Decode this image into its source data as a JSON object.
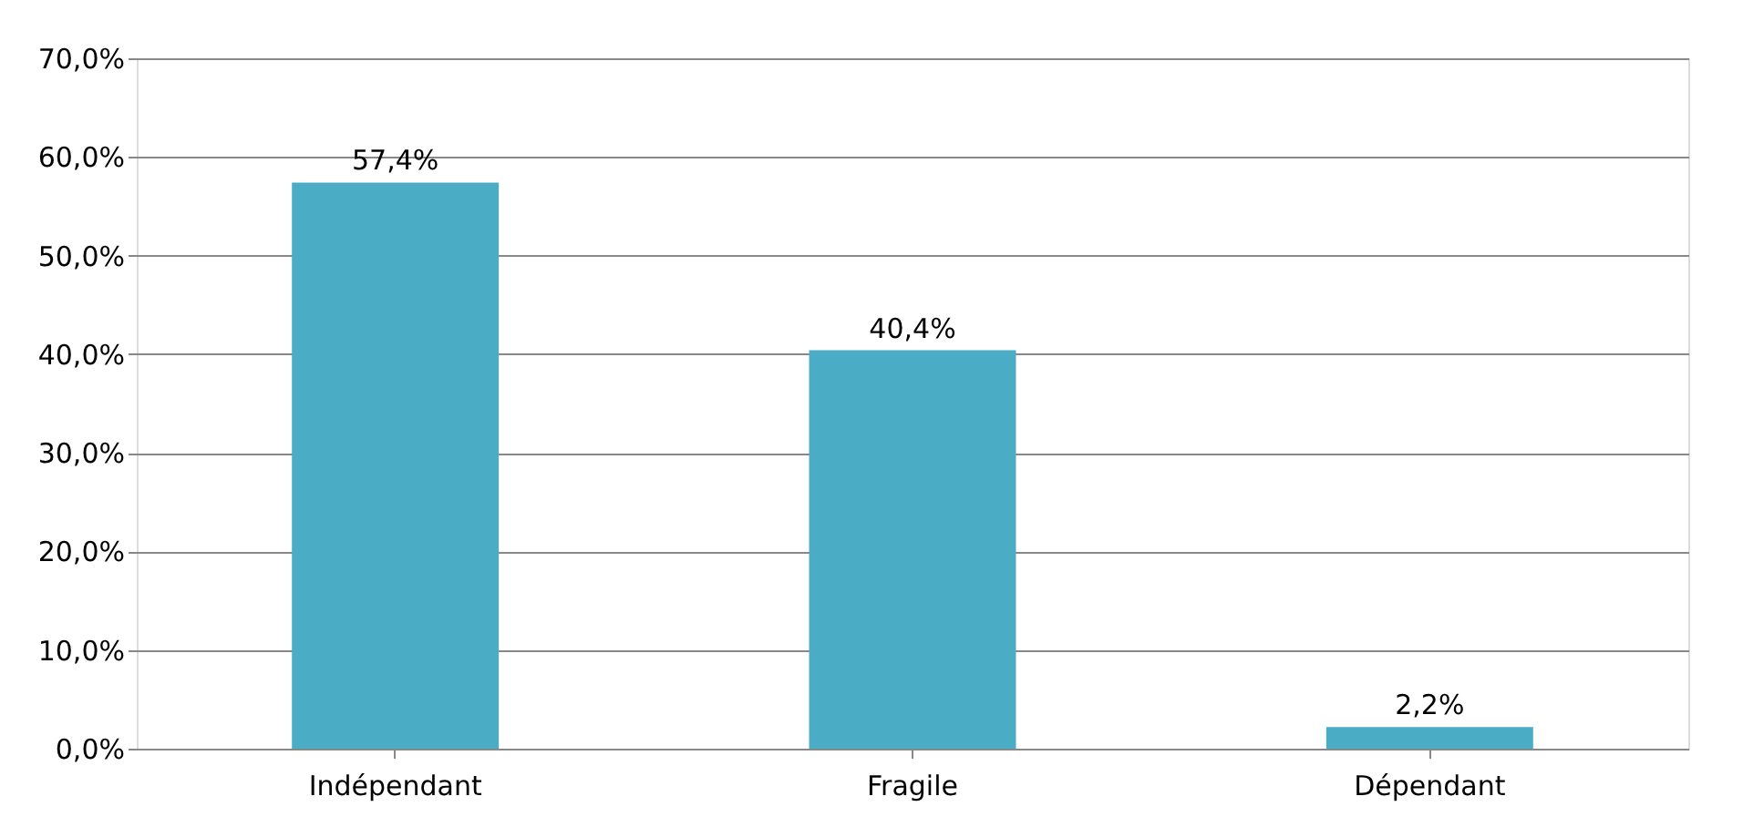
{
  "chart_data": {
    "type": "bar",
    "categories": [
      "Indépendant",
      "Fragile",
      "Dépendant"
    ],
    "values": [
      57.4,
      40.4,
      2.2
    ],
    "value_labels": [
      "57,4%",
      "40,4%",
      "2,2%"
    ],
    "color": "#4bacc6",
    "ylim": [
      0,
      70
    ],
    "yticks": [
      {
        "value": 0,
        "label": "0,0%"
      },
      {
        "value": 10,
        "label": "10,0%"
      },
      {
        "value": 20,
        "label": "20,0%"
      },
      {
        "value": 30,
        "label": "30,0%"
      },
      {
        "value": 40,
        "label": "40,0%"
      },
      {
        "value": 50,
        "label": "50,0%"
      },
      {
        "value": 60,
        "label": "60,0%"
      },
      {
        "value": 70,
        "label": "70,0%"
      }
    ],
    "grid": "y"
  }
}
